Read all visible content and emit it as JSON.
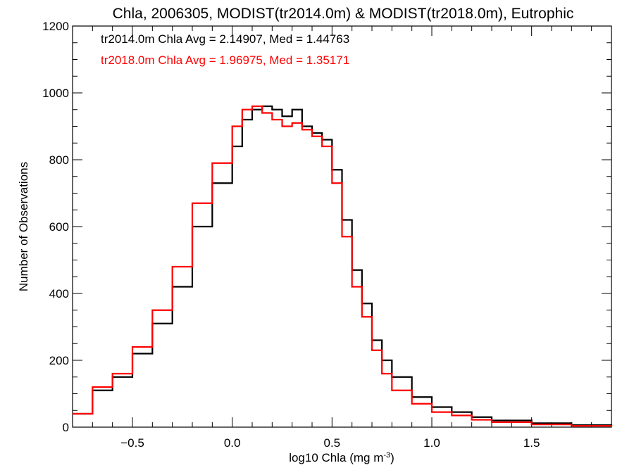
{
  "chart_data": {
    "type": "line",
    "title": "Chla, 2006305, MODIST(tr2014.0m) & MODIST(tr2018.0m), Eutrophic",
    "xlabel_main": "log10 Chla (mg m",
    "xlabel_sup": "-3",
    "xlabel_close": ")",
    "ylabel": "Number of Observations",
    "xlim": [
      -0.8,
      1.9
    ],
    "ylim": [
      0,
      1200
    ],
    "xticks": [
      -0.5,
      0.0,
      0.5,
      1.0,
      1.5
    ],
    "xtick_labels": [
      "−0.5",
      "0.0",
      "0.5",
      "1.0",
      "1.5"
    ],
    "yticks": [
      0,
      200,
      400,
      600,
      800,
      1000,
      1200
    ],
    "ytick_labels": [
      "0",
      "200",
      "400",
      "600",
      "800",
      "1000",
      "1200"
    ],
    "x_minor_step": 0.1,
    "y_minor_step": 50,
    "legend_placement": "top-left",
    "series": [
      {
        "name": "tr2014.0m Chla Avg = 2.14907, Med = 1.44763",
        "color": "#000000",
        "x": [
          -0.8,
          -0.7,
          -0.6,
          -0.5,
          -0.4,
          -0.3,
          -0.2,
          -0.1,
          0.0,
          0.05,
          0.1,
          0.15,
          0.2,
          0.25,
          0.3,
          0.35,
          0.4,
          0.45,
          0.5,
          0.55,
          0.6,
          0.65,
          0.7,
          0.75,
          0.8,
          0.9,
          1.0,
          1.1,
          1.2,
          1.3,
          1.5,
          1.7,
          1.9
        ],
        "y": [
          40,
          110,
          150,
          220,
          310,
          420,
          600,
          730,
          840,
          920,
          950,
          960,
          950,
          930,
          950,
          900,
          880,
          860,
          770,
          620,
          470,
          370,
          260,
          200,
          150,
          90,
          60,
          45,
          30,
          20,
          12,
          6,
          3
        ]
      },
      {
        "name": "tr2018.0m Chla Avg = 1.96975, Med = 1.35171",
        "color": "#ff0000",
        "x": [
          -0.8,
          -0.7,
          -0.6,
          -0.5,
          -0.4,
          -0.3,
          -0.2,
          -0.1,
          0.0,
          0.05,
          0.1,
          0.15,
          0.2,
          0.25,
          0.3,
          0.35,
          0.4,
          0.45,
          0.5,
          0.55,
          0.6,
          0.65,
          0.7,
          0.75,
          0.8,
          0.9,
          1.0,
          1.1,
          1.2,
          1.3,
          1.5,
          1.7,
          1.9
        ],
        "y": [
          40,
          120,
          160,
          240,
          350,
          480,
          670,
          790,
          900,
          950,
          960,
          940,
          920,
          900,
          910,
          890,
          870,
          840,
          730,
          570,
          420,
          330,
          230,
          160,
          110,
          70,
          45,
          35,
          22,
          15,
          8,
          4,
          2
        ]
      }
    ]
  }
}
